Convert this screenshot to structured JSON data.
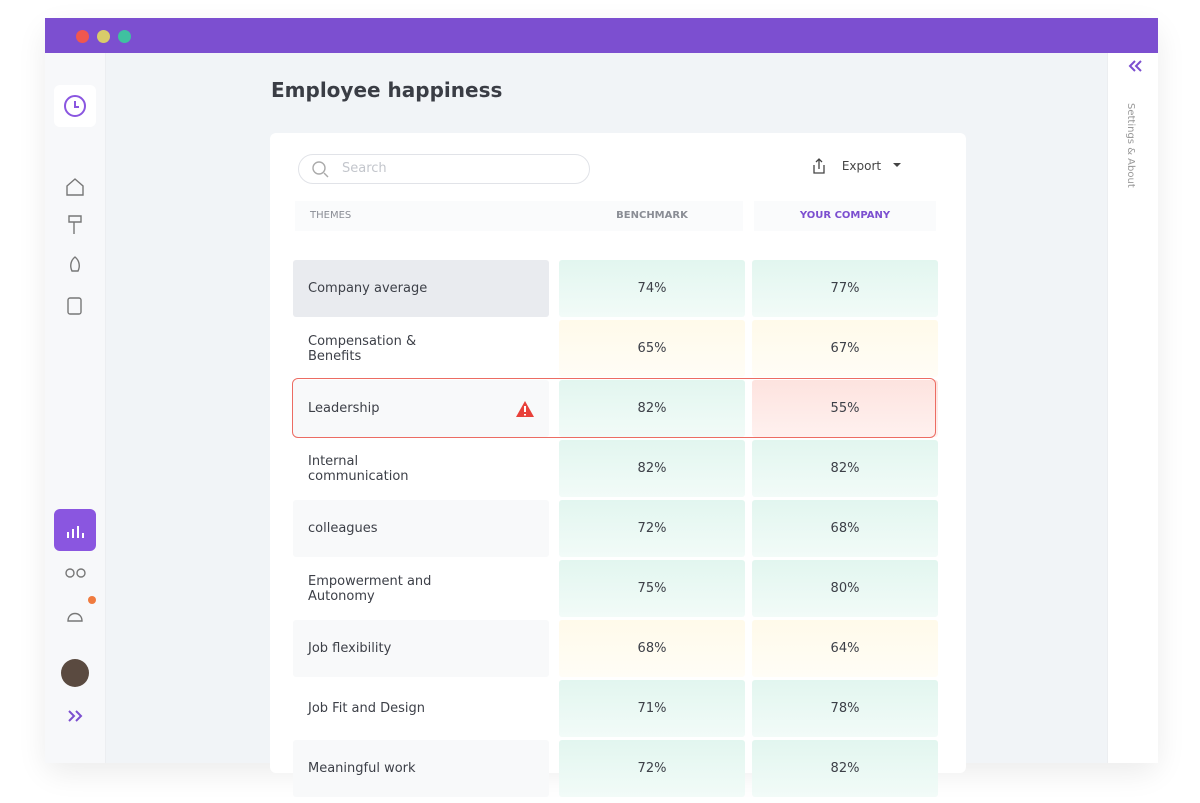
{
  "header": {
    "title": "Employee happiness"
  },
  "search": {
    "placeholder": "Search"
  },
  "export": {
    "label": "Export"
  },
  "side_panel": {
    "label": "Settings & About"
  },
  "table": {
    "columns": [
      "THEMES",
      "BENCHMARK",
      "YOUR COMPANY"
    ],
    "rows": [
      [
        "Company average",
        "74%",
        "77%"
      ],
      [
        "Compensation & Benefits",
        "65%",
        "67%"
      ],
      [
        "Leadership",
        "82%",
        "55%"
      ],
      [
        "Internal communication",
        "82%",
        "82%"
      ],
      [
        "colleagues",
        "72%",
        "68%"
      ],
      [
        "Empowerment and Autonomy",
        "75%",
        "80%"
      ],
      [
        "Job flexibility",
        "68%",
        "64%"
      ],
      [
        "Job Fit and Design",
        "71%",
        "78%"
      ],
      [
        "Meaningful work",
        "72%",
        "82%"
      ]
    ]
  }
}
